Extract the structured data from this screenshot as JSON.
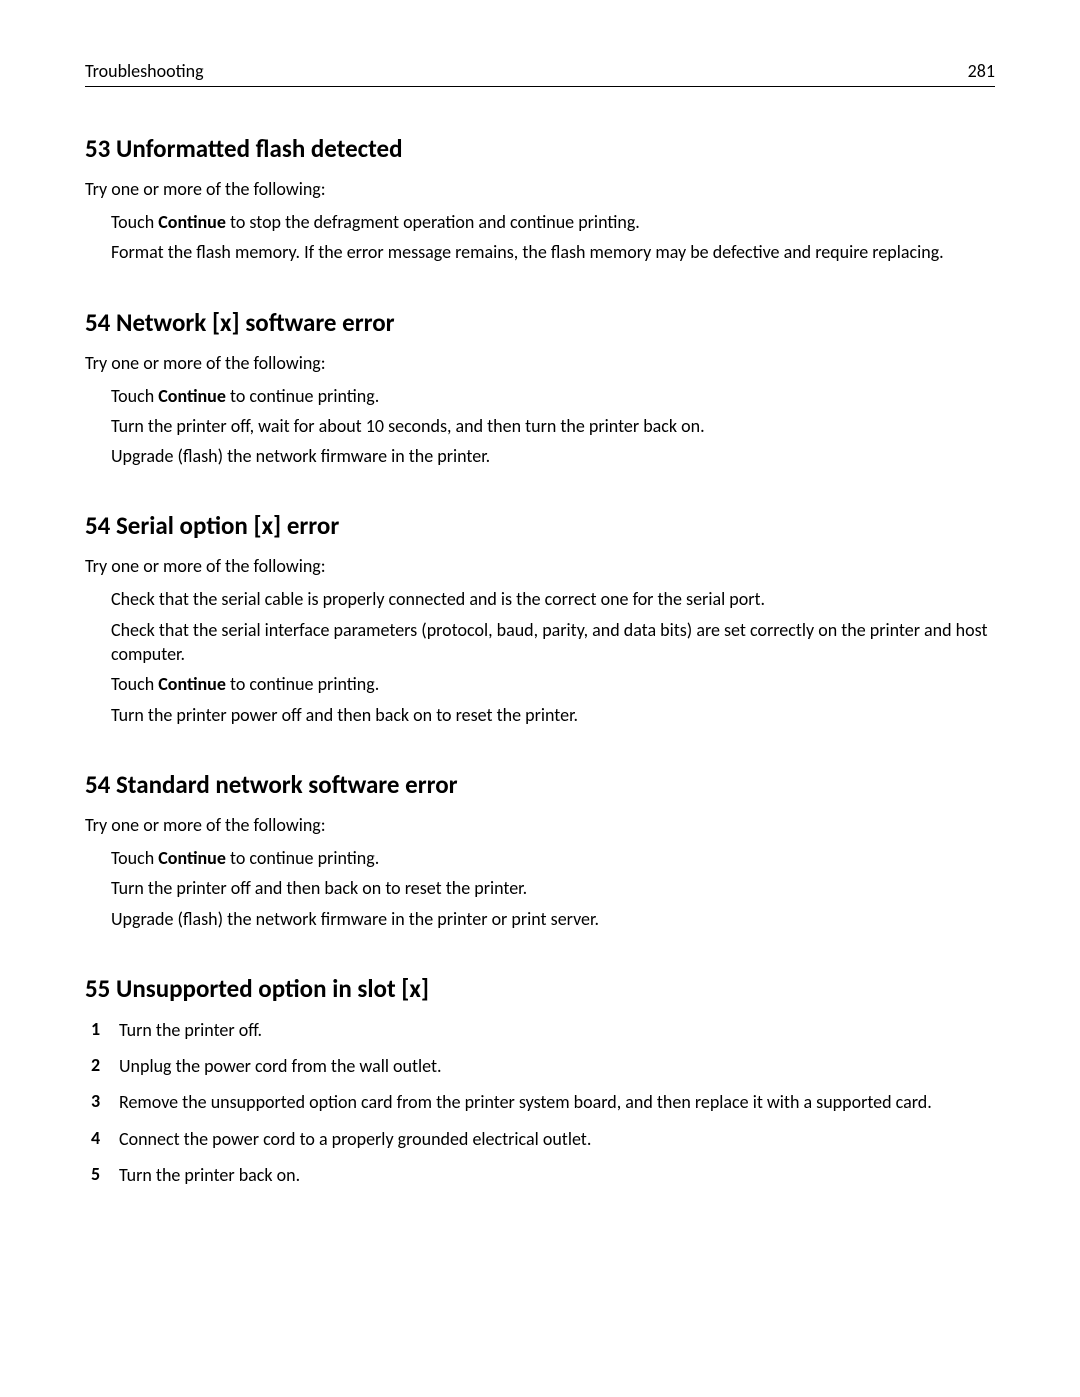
{
  "header": {
    "title": "Troubleshooting",
    "page": "281"
  },
  "sections": [
    {
      "heading": "53 Unformatted flash detected",
      "lead": "Try one or more of the following:",
      "items": [
        [
          {
            "t": "Touch "
          },
          {
            "t": "Continue",
            "b": true
          },
          {
            "t": " to stop the defragment operation and continue printing."
          }
        ],
        [
          {
            "t": "Format the flash memory. If the error message remains, the flash memory may be defective and require replacing."
          }
        ]
      ]
    },
    {
      "heading": "54 Network [x] software error",
      "lead": "Try one or more of the following:",
      "items": [
        [
          {
            "t": "Touch "
          },
          {
            "t": "Continue",
            "b": true
          },
          {
            "t": " to continue printing."
          }
        ],
        [
          {
            "t": "Turn the printer off, wait for about 10 seconds, and then turn the printer back on."
          }
        ],
        [
          {
            "t": "Upgrade (flash) the network firmware in the printer."
          }
        ]
      ]
    },
    {
      "heading": "54 Serial option [x] error",
      "lead": "Try one or more of the following:",
      "items": [
        [
          {
            "t": "Check that the serial cable is properly connected and is the correct one for the serial port."
          }
        ],
        [
          {
            "t": "Check that the serial interface parameters (protocol, baud, parity, and data bits) are set correctly on the printer and host computer."
          }
        ],
        [
          {
            "t": "Touch "
          },
          {
            "t": "Continue",
            "b": true
          },
          {
            "t": " to continue printing."
          }
        ],
        [
          {
            "t": "Turn the printer power off and then back on to reset the printer."
          }
        ]
      ]
    },
    {
      "heading": "54 Standard network software error",
      "lead": "Try one or more of the following:",
      "items": [
        [
          {
            "t": "Touch "
          },
          {
            "t": "Continue",
            "b": true
          },
          {
            "t": " to continue printing."
          }
        ],
        [
          {
            "t": "Turn the printer off and then back on to reset the printer."
          }
        ],
        [
          {
            "t": "Upgrade (flash) the network firmware in the printer or print server."
          }
        ]
      ]
    },
    {
      "heading": "55 Unsupported option in slot [x]",
      "ordered": [
        "Turn the printer off.",
        "Unplug the power cord from the wall outlet.",
        "Remove the unsupported option card from the printer system board, and then replace it with a supported card.",
        "Connect the power cord to a properly grounded electrical outlet.",
        "Turn the printer back on."
      ]
    }
  ]
}
